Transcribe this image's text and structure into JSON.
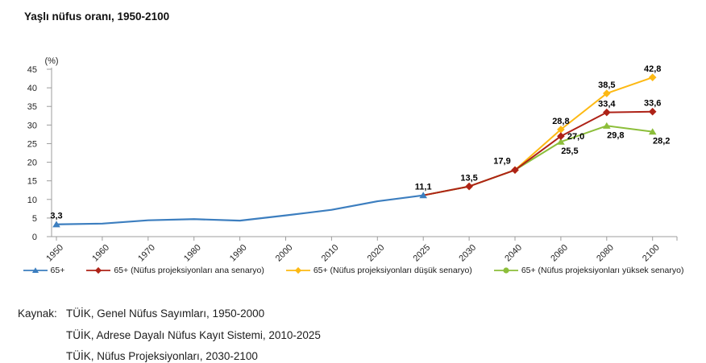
{
  "title": "Yaşlı nüfus oranı, 1950-2100",
  "chart_data": {
    "type": "line",
    "title": "Yaşlı nüfus oranı, 1950-2100",
    "ylabel": "(%)",
    "ylim": [
      0,
      45
    ],
    "ytick_step": 5,
    "yticks": [
      0,
      5,
      10,
      15,
      20,
      25,
      30,
      35,
      40,
      45
    ],
    "grid": false,
    "legend_position": "bottom",
    "categories": [
      "1950",
      "1960",
      "1970",
      "1980",
      "1990",
      "2000",
      "2010",
      "2020",
      "2025",
      "2030",
      "2040",
      "2060",
      "2080",
      "2100"
    ],
    "series": [
      {
        "name": "65+ (Nüfus projeksiyonları düşük senaryo)",
        "color": "#FDB913",
        "marker": "diamond",
        "markers_at": [
          "2030",
          "2040",
          "2060",
          "2080",
          "2100"
        ],
        "points": [
          {
            "x": "2025",
            "y": 11.1
          },
          {
            "x": "2030",
            "y": 13.5
          },
          {
            "x": "2040",
            "y": 17.9
          },
          {
            "x": "2060",
            "y": 28.8,
            "label": "28,8",
            "label_pos": "above"
          },
          {
            "x": "2080",
            "y": 38.5,
            "label": "38,5",
            "label_pos": "above"
          },
          {
            "x": "2100",
            "y": 42.8,
            "label": "42,8",
            "label_pos": "above"
          }
        ]
      },
      {
        "name": "65+ (Nüfus projeksiyonları yüksek senaryo)",
        "color": "#8CBE3A",
        "marker": "triangle",
        "markers_at": [
          "2060",
          "2080",
          "2100"
        ],
        "points": [
          {
            "x": "2025",
            "y": 11.1
          },
          {
            "x": "2030",
            "y": 13.5
          },
          {
            "x": "2040",
            "y": 17.9
          },
          {
            "x": "2060",
            "y": 25.5,
            "label": "25,5",
            "label_pos": "below"
          },
          {
            "x": "2080",
            "y": 29.8,
            "label": "29,8",
            "label_pos": "below"
          },
          {
            "x": "2100",
            "y": 28.2,
            "label": "28,2",
            "label_pos": "below"
          }
        ]
      },
      {
        "name": "65+ (Nüfus projeksiyonları ana senaryo)",
        "color": "#AE2217",
        "marker": "diamond",
        "markers_at": [
          "2030",
          "2040",
          "2060",
          "2080",
          "2100"
        ],
        "points": [
          {
            "x": "2025",
            "y": 11.1
          },
          {
            "x": "2030",
            "y": 13.5,
            "label": "13,5",
            "label_pos": "above"
          },
          {
            "x": "2040",
            "y": 17.9,
            "label": "17,9",
            "label_pos": "above-left"
          },
          {
            "x": "2060",
            "y": 27.0,
            "label": "27,0",
            "label_pos": "right"
          },
          {
            "x": "2080",
            "y": 33.4,
            "label": "33,4",
            "label_pos": "above"
          },
          {
            "x": "2100",
            "y": 33.6,
            "label": "33,6",
            "label_pos": "above"
          }
        ]
      },
      {
        "name": "65+",
        "color": "#3C7EBF",
        "marker": "triangle",
        "markers_at": [
          "1950",
          "2025"
        ],
        "points": [
          {
            "x": "1950",
            "y": 3.3,
            "label": "3,3",
            "label_pos": "above"
          },
          {
            "x": "1960",
            "y": 3.5
          },
          {
            "x": "1970",
            "y": 4.4
          },
          {
            "x": "1980",
            "y": 4.7
          },
          {
            "x": "1990",
            "y": 4.3
          },
          {
            "x": "2000",
            "y": 5.7
          },
          {
            "x": "2010",
            "y": 7.2
          },
          {
            "x": "2020",
            "y": 9.5
          },
          {
            "x": "2025",
            "y": 11.1,
            "label": "11,1",
            "label_pos": "above"
          }
        ]
      }
    ],
    "legend": [
      {
        "label": "65+",
        "color": "#3C7EBF",
        "marker": "triangle"
      },
      {
        "label": "65+ (Nüfus projeksiyonları ana senaryo)",
        "color": "#AE2217",
        "marker": "diamond"
      },
      {
        "label": "65+ (Nüfus projeksiyonları düşük senaryo)",
        "color": "#FDB913",
        "marker": "diamond"
      },
      {
        "label": "65+ (Nüfus projeksiyonları yüksek senaryo)",
        "color": "#8CBE3A",
        "marker": "circle"
      }
    ]
  },
  "source": {
    "label": "Kaynak:",
    "lines": [
      "TÜİK, Genel Nüfus Sayımları, 1950-2000",
      "TÜİK, Adrese Dayalı Nüfus Kayıt Sistemi, 2010-2025",
      "TÜİK, Nüfus Projeksiyonları, 2030-2100"
    ]
  },
  "colors": {
    "axis": "#9c9c9c",
    "tick_text": "#262626",
    "data_label": "#000000"
  }
}
